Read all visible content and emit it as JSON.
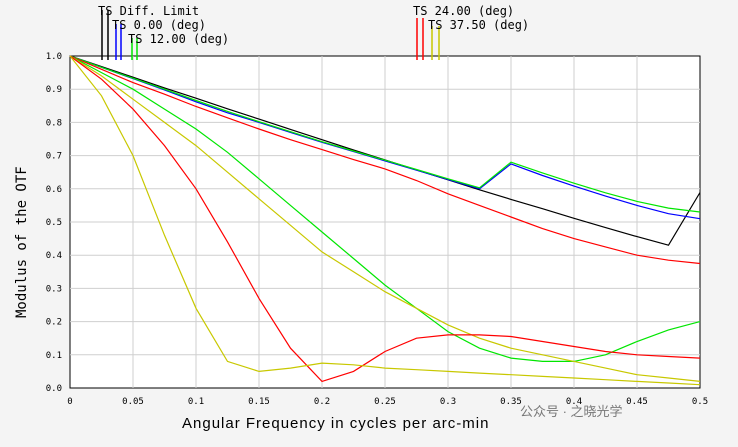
{
  "watermark": "公众号 · 之晓光学",
  "chart_data": {
    "type": "line",
    "title": "",
    "xlabel": "Angular Frequency in cycles per arc-min",
    "ylabel": "Modulus of the OTF",
    "xlim": [
      0,
      0.5
    ],
    "ylim": [
      0,
      1.0
    ],
    "xticks": [
      "0",
      "0.05",
      "0.1",
      "0.15",
      "0.2",
      "0.25",
      "0.3",
      "0.35",
      "0.4",
      "0.45",
      "0.5"
    ],
    "yticks": [
      "0.0",
      "0.1",
      "0.2",
      "0.3",
      "0.4",
      "0.5",
      "0.6",
      "0.7",
      "0.8",
      "0.9",
      "1.0"
    ],
    "grid": true,
    "legend": [
      {
        "label": "TS Diff. Limit",
        "color": "#000000"
      },
      {
        "label": "TS 0.00 (deg)",
        "color": "#0000ff"
      },
      {
        "label": "TS 12.00 (deg)",
        "color": "#00e600"
      },
      {
        "label": "TS 24.00 (deg)",
        "color": "#ff0000"
      },
      {
        "label": "TS 37.50 (deg)",
        "color": "#c8c800"
      }
    ],
    "x": [
      0,
      0.025,
      0.05,
      0.075,
      0.1,
      0.125,
      0.15,
      0.175,
      0.2,
      0.225,
      0.25,
      0.275,
      0.3,
      0.325,
      0.35,
      0.375,
      0.4,
      0.425,
      0.45,
      0.475,
      0.5
    ],
    "series": [
      {
        "color": "#000000",
        "values": [
          1.0,
          0.968,
          0.936,
          0.904,
          0.873,
          0.841,
          0.81,
          0.779,
          0.748,
          0.717,
          0.687,
          0.657,
          0.627,
          0.597,
          0.568,
          0.54,
          0.511,
          0.483,
          0.456,
          0.43,
          0.589
        ]
      },
      {
        "color": "#0000ff",
        "values": [
          1.0,
          0.966,
          0.932,
          0.898,
          0.862,
          0.829,
          0.8,
          0.77,
          0.74,
          0.712,
          0.684,
          0.656,
          0.628,
          0.6,
          0.675,
          0.64,
          0.608,
          0.578,
          0.55,
          0.525,
          0.51
        ]
      },
      {
        "color": "#00e600",
        "values": [
          1.0,
          0.966,
          0.933,
          0.9,
          0.866,
          0.833,
          0.802,
          0.772,
          0.742,
          0.714,
          0.686,
          0.658,
          0.63,
          0.603,
          0.68,
          0.648,
          0.617,
          0.588,
          0.562,
          0.542,
          0.53
        ]
      },
      {
        "color": "#ff0000",
        "values": [
          1.0,
          0.96,
          0.92,
          0.885,
          0.848,
          0.814,
          0.78,
          0.748,
          0.718,
          0.688,
          0.66,
          0.625,
          0.585,
          0.55,
          0.515,
          0.48,
          0.45,
          0.425,
          0.4,
          0.385,
          0.375
        ]
      },
      {
        "color": "#00e600",
        "values": [
          1.0,
          0.95,
          0.9,
          0.84,
          0.78,
          0.71,
          0.63,
          0.55,
          0.47,
          0.39,
          0.31,
          0.24,
          0.17,
          0.12,
          0.09,
          0.08,
          0.08,
          0.1,
          0.14,
          0.175,
          0.2
        ]
      },
      {
        "color": "#c8c800",
        "values": [
          1.0,
          0.94,
          0.87,
          0.8,
          0.73,
          0.65,
          0.57,
          0.49,
          0.41,
          0.35,
          0.29,
          0.24,
          0.19,
          0.15,
          0.12,
          0.1,
          0.08,
          0.06,
          0.04,
          0.03,
          0.02
        ]
      },
      {
        "color": "#ff0000",
        "values": [
          1.0,
          0.93,
          0.84,
          0.73,
          0.6,
          0.44,
          0.27,
          0.12,
          0.02,
          0.05,
          0.11,
          0.15,
          0.16,
          0.16,
          0.155,
          0.14,
          0.125,
          0.11,
          0.1,
          0.095,
          0.09
        ]
      },
      {
        "color": "#c8c800",
        "values": [
          1.0,
          0.88,
          0.7,
          0.46,
          0.24,
          0.08,
          0.05,
          0.06,
          0.075,
          0.07,
          0.06,
          0.055,
          0.05,
          0.045,
          0.04,
          0.035,
          0.03,
          0.025,
          0.02,
          0.015,
          0.01
        ]
      }
    ]
  }
}
